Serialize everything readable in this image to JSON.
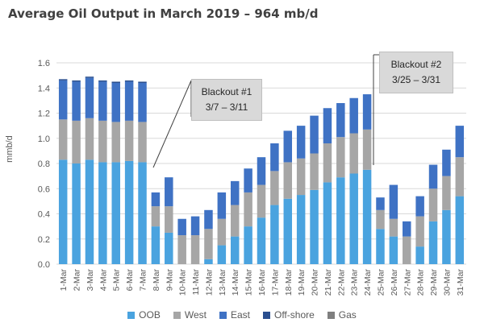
{
  "chart_data": {
    "type": "bar",
    "stacked": true,
    "title": "Average Oil Output in March 2019 – 964 mb/d",
    "ylabel": "mmb/d",
    "xlabel": "",
    "ylim": [
      0,
      1.6
    ],
    "yticks": [
      "0.0",
      "0.2",
      "0.4",
      "0.6",
      "0.8",
      "1.0",
      "1.2",
      "1.4",
      "1.6"
    ],
    "grid": true,
    "legend_position": "bottom",
    "categories": [
      "1-Mar",
      "2-Mar",
      "3-Mar",
      "4-Mar",
      "5-Mar",
      "6-Mar",
      "7-Mar",
      "8-Mar",
      "9-Mar",
      "10-Mar",
      "11-Mar",
      "12-Mar",
      "13-Mar",
      "14-Mar",
      "15-Mar",
      "16-Mar",
      "17-Mar",
      "18-Mar",
      "19-Mar",
      "20-Mar",
      "21-Mar",
      "22-Mar",
      "23-Mar",
      "24-Mar",
      "25-Mar",
      "26-Mar",
      "27-Mar",
      "28-Mar",
      "29-Mar",
      "30-Mar",
      "31-Mar"
    ],
    "series": [
      {
        "name": "OOB",
        "color": "#4aa3df",
        "values": [
          0.83,
          0.8,
          0.83,
          0.81,
          0.81,
          0.82,
          0.81,
          0.3,
          0.25,
          0.0,
          0.0,
          0.04,
          0.15,
          0.22,
          0.3,
          0.37,
          0.47,
          0.52,
          0.55,
          0.59,
          0.65,
          0.69,
          0.72,
          0.75,
          0.28,
          0.22,
          0.0,
          0.14,
          0.34,
          0.43,
          0.54
        ]
      },
      {
        "name": "West",
        "color": "#a6a6a6",
        "values": [
          0.32,
          0.34,
          0.33,
          0.33,
          0.32,
          0.32,
          0.32,
          0.16,
          0.21,
          0.23,
          0.23,
          0.24,
          0.21,
          0.25,
          0.27,
          0.26,
          0.27,
          0.29,
          0.29,
          0.29,
          0.31,
          0.32,
          0.32,
          0.32,
          0.15,
          0.14,
          0.22,
          0.24,
          0.26,
          0.27,
          0.31
        ]
      },
      {
        "name": "East",
        "color": "#3f72c4",
        "values": [
          0.31,
          0.31,
          0.32,
          0.31,
          0.31,
          0.31,
          0.31,
          0.11,
          0.23,
          0.13,
          0.15,
          0.15,
          0.21,
          0.19,
          0.19,
          0.22,
          0.22,
          0.25,
          0.26,
          0.3,
          0.28,
          0.27,
          0.28,
          0.28,
          0.1,
          0.27,
          0.12,
          0.16,
          0.19,
          0.21,
          0.25
        ]
      },
      {
        "name": "Off-shore",
        "color": "#2a4f8f",
        "values": [
          0.01,
          0.01,
          0.01,
          0.01,
          0.01,
          0.01,
          0.01,
          0.0,
          0.0,
          0.0,
          0.0,
          0.0,
          0.0,
          0.0,
          0.0,
          0.0,
          0.0,
          0.0,
          0.0,
          0.0,
          0.0,
          0.0,
          0.0,
          0.0,
          0.0,
          0.0,
          0.0,
          0.0,
          0.0,
          0.0,
          0.0
        ]
      },
      {
        "name": "Gas",
        "color": "#7f7f7f",
        "values": [
          0.0,
          0.0,
          0.0,
          0.0,
          0.0,
          0.0,
          0.0,
          0.0,
          0.0,
          0.0,
          0.0,
          0.0,
          0.0,
          0.0,
          0.0,
          0.0,
          0.0,
          0.0,
          0.0,
          0.0,
          0.0,
          0.0,
          0.0,
          0.0,
          0.0,
          0.0,
          0.0,
          0.0,
          0.0,
          0.0,
          0.0
        ]
      }
    ],
    "annotations": [
      {
        "label": "Blackout #1",
        "dates": "3/7 – 3/11"
      },
      {
        "label": "Blackout #2",
        "dates": "3/25 – 3/31"
      }
    ]
  }
}
